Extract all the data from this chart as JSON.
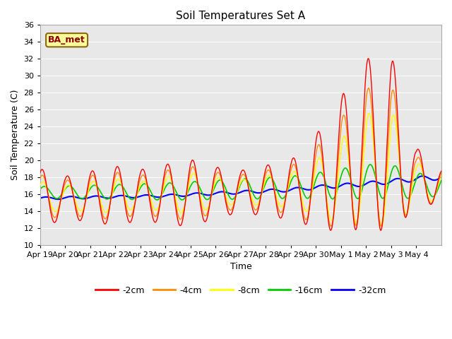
{
  "title": "Soil Temperatures Set A",
  "xlabel": "Time",
  "ylabel": "Soil Temperature (C)",
  "ylim": [
    10,
    36
  ],
  "yticks": [
    10,
    12,
    14,
    16,
    18,
    20,
    22,
    24,
    26,
    28,
    30,
    32,
    34,
    36
  ],
  "annotation_text": "BA_met",
  "annotation_color": "#8B0000",
  "annotation_bg": "#FFFF99",
  "annotation_border": "#8B6914",
  "colors": {
    "-2cm": "#FF0000",
    "-4cm": "#FF8C00",
    "-8cm": "#FFFF00",
    "-16cm": "#00CC00",
    "-32cm": "#0000FF"
  },
  "tick_labels": [
    "Apr 19",
    "Apr 20",
    "Apr 21",
    "Apr 22",
    "Apr 23",
    "Apr 24",
    "Apr 25",
    "Apr 26",
    "Apr 27",
    "Apr 28",
    "Apr 29",
    "Apr 30",
    "May 1",
    "May 2",
    "May 3",
    "May 4"
  ],
  "fig_bg": "#FFFFFF",
  "plot_bg": "#E8E8E8",
  "grid_color": "#FFFFFF"
}
